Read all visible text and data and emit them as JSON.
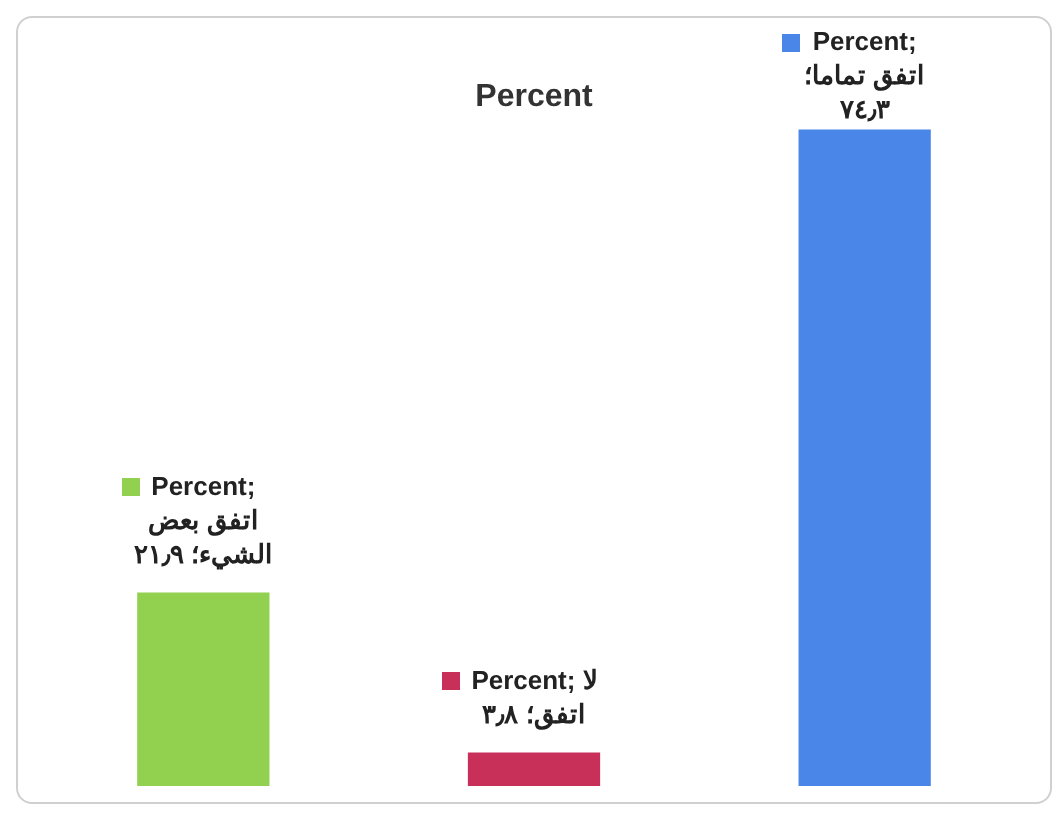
{
  "chart_data": {
    "type": "bar",
    "title": "Percent",
    "categories": [
      null,
      null,
      null
    ],
    "series": [
      {
        "colors": [
          "#92d050",
          "#c8305a",
          "#4a86e8"
        ],
        "values": [
          21.9,
          3.8,
          74.3
        ],
        "value_labels": [
          "Percent; اتفق بعض الشيء؛ ٢١٫٩",
          "Percent; لا اتفق؛ ٣٫٨",
          "Percent; اتفق تماما؛ ٧٤٫٣"
        ]
      }
    ],
    "legend": false
  }
}
